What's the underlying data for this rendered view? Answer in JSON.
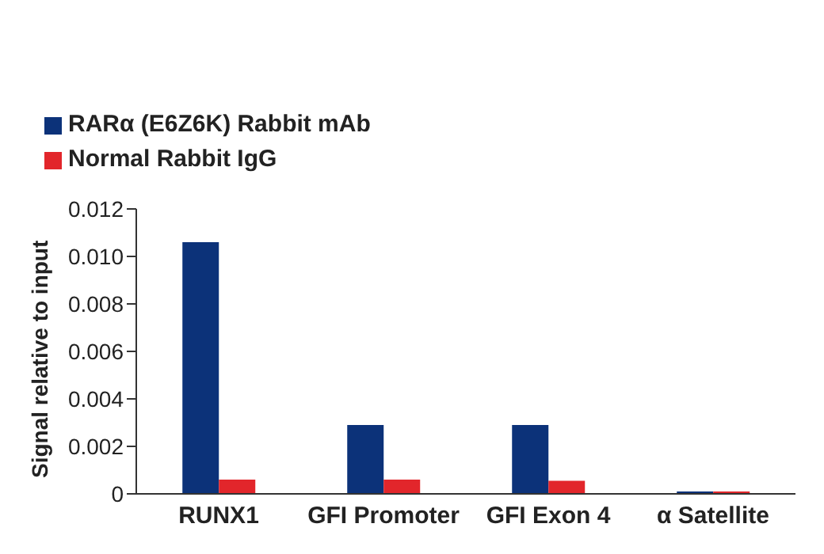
{
  "chart_data": {
    "type": "bar",
    "ylabel": "Signal relative to input",
    "categories": [
      "RUNX1",
      "GFI Promoter",
      "GFI Exon 4",
      "α Satellite"
    ],
    "series": [
      {
        "name": "RARα (E6Z6K) Rabbit mAb",
        "color": "#0c3279",
        "values": [
          0.0106,
          0.0029,
          0.0029,
          0.0001
        ]
      },
      {
        "name": "Normal Rabbit IgG",
        "color": "#e2262b",
        "values": [
          0.0006,
          0.0006,
          0.00055,
          0.0001
        ]
      }
    ],
    "ylim": [
      0,
      0.012
    ],
    "yticks": [
      {
        "value": 0,
        "label": "0"
      },
      {
        "value": 0.002,
        "label": "0.002"
      },
      {
        "value": 0.004,
        "label": "0.004"
      },
      {
        "value": 0.006,
        "label": "0.006"
      },
      {
        "value": 0.008,
        "label": "0.008"
      },
      {
        "value": 0.01,
        "label": "0.010"
      },
      {
        "value": 0.012,
        "label": "0.012"
      }
    ],
    "grid": false,
    "legend": "top left"
  }
}
